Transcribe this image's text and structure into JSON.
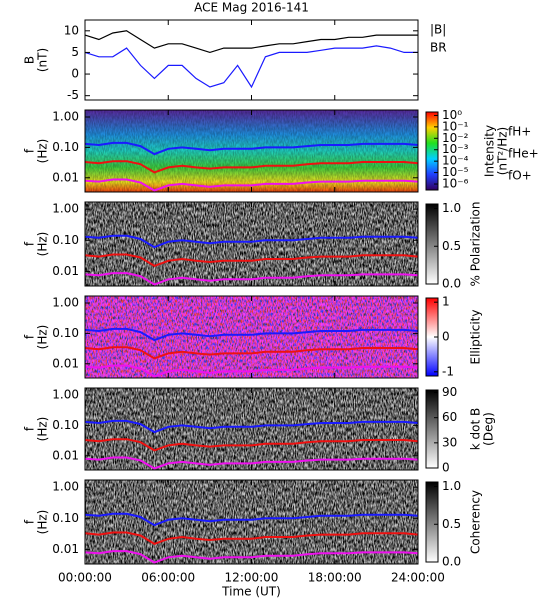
{
  "chart_data": [
    {
      "type": "line",
      "title": "ACE Mag 2016-141",
      "ylabel": [
        "B",
        "(nT)"
      ],
      "xlim": [
        0,
        24
      ],
      "ylim": [
        -6,
        12.5
      ],
      "yticks": [
        -5,
        0,
        5,
        10
      ],
      "x": [
        0,
        1,
        2,
        3,
        4,
        5,
        6,
        7,
        8,
        9,
        10,
        11,
        12,
        13,
        14,
        15,
        16,
        17,
        18,
        19,
        20,
        21,
        22,
        23,
        24
      ],
      "series": [
        {
          "name": "|B|",
          "color": "#000000",
          "values": [
            9,
            8,
            9.5,
            10,
            8,
            6,
            7,
            7,
            6,
            5,
            6,
            6,
            6,
            6.5,
            7,
            7,
            7.5,
            8,
            8,
            8.5,
            8.5,
            9,
            9,
            9,
            9
          ]
        },
        {
          "name": "BR",
          "color": "#1a1aff",
          "values": [
            5,
            4,
            4,
            6,
            2,
            -1,
            2,
            2,
            -1,
            -3,
            -2,
            2,
            -3,
            4,
            5,
            5,
            5,
            5.5,
            6,
            6,
            6,
            6.5,
            6,
            5,
            5
          ]
        }
      ]
    },
    {
      "type": "spectrogram",
      "ylabel": [
        "f",
        "(Hz)"
      ],
      "xlim": [
        0,
        24
      ],
      "log": true,
      "ylim": [
        0.0034,
        1.7
      ],
      "yticks": [
        {
          "value": 1,
          "label": "1.00"
        },
        {
          "value": 0.1,
          "label": "0.10"
        },
        {
          "value": 0.01,
          "label": "0.01"
        }
      ],
      "colorbar": {
        "label": [
          "Intensity",
          "(nT²/Hz)"
        ],
        "colormap": "rainbow",
        "log": true,
        "lim": [
          3e-07,
          2
        ],
        "ticks": [
          {
            "value": 1,
            "label": "10⁰"
          },
          {
            "value": 0.1,
            "label": "10⁻¹"
          },
          {
            "value": 0.01,
            "label": "10⁻²"
          },
          {
            "value": 0.001,
            "label": "10⁻³"
          },
          {
            "value": 0.0001,
            "label": "10⁻⁴"
          },
          {
            "value": 1e-05,
            "label": "10⁻⁵"
          },
          {
            "value": 1e-06,
            "label": "10⁻⁶"
          }
        ]
      },
      "x": [
        0,
        1,
        2,
        3,
        4,
        5,
        6,
        7,
        8,
        9,
        10,
        11,
        12,
        13,
        14,
        15,
        16,
        17,
        18,
        19,
        20,
        21,
        22,
        23,
        24
      ],
      "series": [
        {
          "name": "fH+",
          "color": "#1a1aff",
          "values": [
            0.13,
            0.12,
            0.14,
            0.14,
            0.11,
            0.06,
            0.09,
            0.1,
            0.09,
            0.08,
            0.09,
            0.09,
            0.09,
            0.1,
            0.1,
            0.1,
            0.11,
            0.12,
            0.12,
            0.12,
            0.13,
            0.13,
            0.13,
            0.13,
            0.12
          ]
        },
        {
          "name": "fHe+",
          "color": "#ee1111",
          "values": [
            0.033,
            0.03,
            0.035,
            0.035,
            0.028,
            0.015,
            0.022,
            0.025,
            0.022,
            0.02,
            0.022,
            0.022,
            0.022,
            0.025,
            0.025,
            0.025,
            0.028,
            0.03,
            0.03,
            0.03,
            0.033,
            0.033,
            0.033,
            0.033,
            0.03
          ]
        },
        {
          "name": "fO+",
          "color": "#ee11ee",
          "values": [
            0.008,
            0.0075,
            0.0088,
            0.0088,
            0.007,
            0.0038,
            0.0056,
            0.0063,
            0.0056,
            0.005,
            0.0056,
            0.0056,
            0.0056,
            0.0063,
            0.0063,
            0.0063,
            0.007,
            0.0075,
            0.0075,
            0.0075,
            0.008,
            0.008,
            0.008,
            0.008,
            0.0075
          ]
        }
      ]
    },
    {
      "type": "spectrogram",
      "ylabel": [
        "f",
        "(Hz)"
      ],
      "xlim": [
        0,
        24
      ],
      "log": true,
      "ylim": [
        0.0034,
        1.7
      ],
      "yticks": [
        {
          "value": 1,
          "label": "1.00"
        },
        {
          "value": 0.1,
          "label": "0.10"
        },
        {
          "value": 0.01,
          "label": "0.01"
        }
      ],
      "colorbar": {
        "label": [
          "% Polarization"
        ],
        "colormap": "gray",
        "lim": [
          0,
          1.06
        ],
        "ticks": [
          {
            "value": 0,
            "label": "0.0"
          },
          {
            "value": 0.5,
            "label": "0.5"
          },
          {
            "value": 1,
            "label": "1.0"
          }
        ]
      }
    },
    {
      "type": "spectrogram",
      "ylabel": [
        "f",
        "(Hz)"
      ],
      "xlim": [
        0,
        24
      ],
      "log": true,
      "ylim": [
        0.0034,
        1.7
      ],
      "yticks": [
        {
          "value": 1,
          "label": "1.00"
        },
        {
          "value": 0.1,
          "label": "0.10"
        },
        {
          "value": 0.01,
          "label": "0.01"
        }
      ],
      "colorbar": {
        "label": [
          "Ellipticity"
        ],
        "colormap": "bwr",
        "lim": [
          -1.12,
          1.12
        ],
        "ticks": [
          -1,
          0,
          1
        ]
      }
    },
    {
      "type": "spectrogram",
      "ylabel": [
        "f",
        "(Hz)"
      ],
      "xlim": [
        0,
        24
      ],
      "log": true,
      "ylim": [
        0.0034,
        1.7
      ],
      "yticks": [
        {
          "value": 1,
          "label": "1.00"
        },
        {
          "value": 0.1,
          "label": "0.10"
        },
        {
          "value": 0.01,
          "label": "0.01"
        }
      ],
      "colorbar": {
        "label": [
          "k dot B",
          "(Deg)"
        ],
        "colormap": "gray",
        "lim": [
          0,
          93
        ],
        "ticks": [
          0,
          30,
          60,
          90
        ]
      }
    },
    {
      "type": "spectrogram",
      "ylabel": [
        "f",
        "(Hz)"
      ],
      "xlim": [
        0,
        24
      ],
      "log": true,
      "ylim": [
        0.0034,
        1.7
      ],
      "yticks": [
        {
          "value": 1,
          "label": "1.00"
        },
        {
          "value": 0.1,
          "label": "0.10"
        },
        {
          "value": 0.01,
          "label": "0.01"
        }
      ],
      "colorbar": {
        "label": [
          "Coherency"
        ],
        "colormap": "gray",
        "lim": [
          0,
          1.06
        ],
        "ticks": [
          {
            "value": 0,
            "label": "0.0"
          },
          {
            "value": 0.5,
            "label": "0.5"
          },
          {
            "value": 1,
            "label": "1.0"
          }
        ]
      },
      "xlabel": "Time (UT)",
      "xticks": [
        {
          "value": 0,
          "label": "00:00:00"
        },
        {
          "value": 6,
          "label": "06:00:00"
        },
        {
          "value": 12,
          "label": "12:00:00"
        },
        {
          "value": 18,
          "label": "18:00:00"
        },
        {
          "value": 24,
          "label": "24:00:00"
        }
      ]
    }
  ]
}
